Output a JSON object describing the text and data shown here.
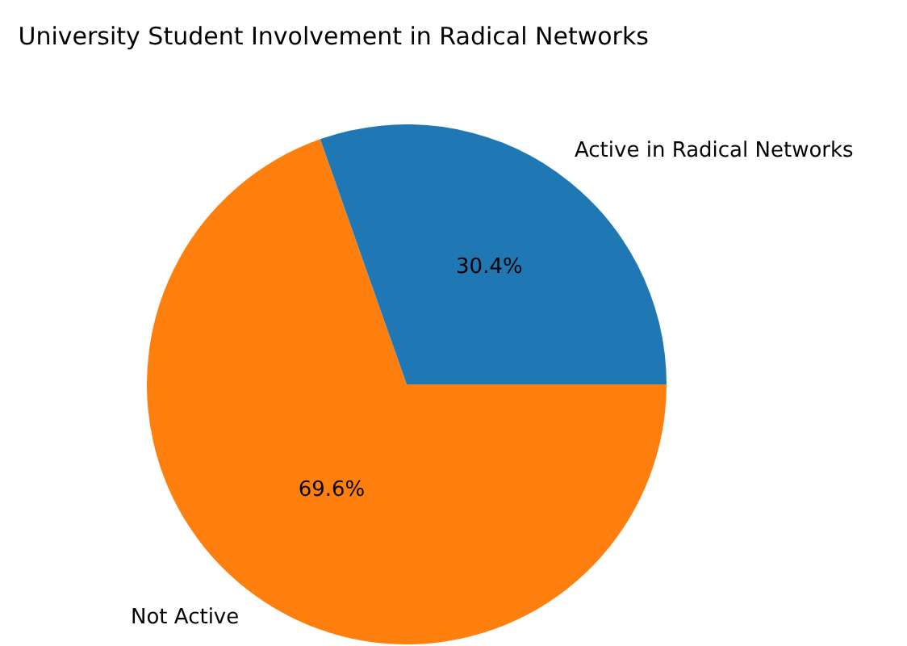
{
  "chart_data": {
    "type": "pie",
    "title": "University Student Involvement in Radical Networks",
    "categories": [
      "Active in Radical Networks",
      "Not Active"
    ],
    "values": [
      30.4,
      69.6
    ],
    "value_labels": [
      "30.4%",
      "69.6%"
    ],
    "colors": [
      "#1f77b4",
      "#ff7f0e"
    ]
  }
}
